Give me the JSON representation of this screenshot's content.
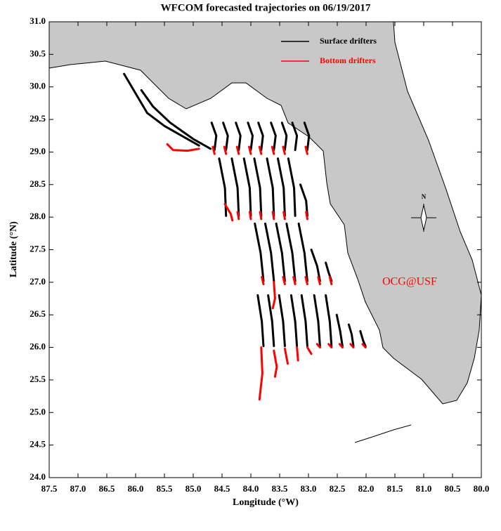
{
  "chart_data": {
    "type": "trajectory-map",
    "title": "WFCOM forecasted trajectories on 06/19/2017",
    "xlabel": "Longitude (°W)",
    "ylabel": "Latitude (°N)",
    "watermark": "OCG@USF",
    "compass_label": "N",
    "legend": "upper right",
    "xlim": [
      87.5,
      80
    ],
    "ylim": [
      24,
      31
    ],
    "xticks": [
      87.5,
      {
        "value": 87,
        "label": "87.0"
      },
      86.5,
      {
        "value": 86,
        "label": "86.0"
      },
      85.5,
      {
        "value": 85,
        "label": "85.0"
      },
      84.5,
      {
        "value": 84,
        "label": "84.0"
      },
      83.5,
      {
        "value": 83,
        "label": "83.0"
      },
      82.5,
      {
        "value": 82,
        "label": "82.0"
      },
      81.5,
      {
        "value": 81,
        "label": "81.0"
      },
      80.5,
      {
        "value": 80,
        "label": "80.0"
      }
    ],
    "yticks": [
      {
        "value": 24,
        "label": "24.0"
      },
      24.5,
      {
        "value": 25,
        "label": "25.0"
      },
      25.5,
      {
        "value": 26,
        "label": "26.0"
      },
      26.5,
      {
        "value": 27,
        "label": "27.0"
      },
      27.5,
      {
        "value": 28,
        "label": "28.0"
      },
      28.5,
      {
        "value": 29,
        "label": "29.0"
      },
      29.5,
      {
        "value": 30,
        "label": "30.0"
      },
      30.5,
      {
        "value": 31,
        "label": "31.0"
      }
    ],
    "series": [
      {
        "name": "Surface drifters",
        "color": "#000000",
        "x": [
          86.2,
          86.0,
          85.8,
          85.5,
          85.2,
          84.9,
          null,
          85.9,
          85.7,
          85.4,
          85.0,
          84.7,
          null,
          84.68,
          84.6,
          84.63,
          null,
          84.48,
          84.4,
          84.43,
          null,
          84.26,
          84.18,
          84.21,
          null,
          84.05,
          83.97,
          84.0,
          null,
          83.87,
          83.79,
          83.82,
          null,
          83.65,
          83.57,
          83.6,
          null,
          83.46,
          83.38,
          83.41,
          null,
          83.28,
          83.2,
          83.23,
          null,
          83.07,
          82.99,
          83.02,
          null,
          84.55,
          84.45,
          84.43,
          null,
          84.33,
          84.23,
          84.21,
          null,
          84.12,
          84.02,
          84.0,
          null,
          83.94,
          83.84,
          83.82,
          null,
          83.72,
          83.62,
          83.6,
          null,
          83.53,
          83.43,
          83.41,
          null,
          83.35,
          83.25,
          83.23,
          null,
          83.14,
          83.04,
          83.02,
          null,
          83.93,
          83.83,
          83.78,
          null,
          83.75,
          83.65,
          83.6,
          null,
          83.56,
          83.46,
          83.41,
          null,
          83.38,
          83.28,
          83.23,
          null,
          83.17,
          83.07,
          83.02,
          null,
          82.95,
          82.85,
          82.8,
          null,
          82.7,
          82.65,
          82.6,
          null,
          83.88,
          83.81,
          83.78,
          null,
          83.7,
          83.63,
          83.6,
          null,
          83.51,
          83.44,
          83.41,
          null,
          83.3,
          83.23,
          83.2,
          null,
          83.12,
          83.05,
          83.02,
          null,
          82.9,
          82.83,
          82.8,
          null,
          82.7,
          82.63,
          82.6,
          null,
          82.51,
          82.45,
          82.41,
          null,
          82.3,
          82.25,
          82.22,
          null,
          82.1,
          82.05,
          82.01
        ],
        "y": [
          30.2,
          29.9,
          29.6,
          29.4,
          29.25,
          29.1,
          null,
          29.95,
          29.7,
          29.45,
          29.2,
          29.05,
          null,
          29.45,
          29.25,
          29.03,
          null,
          29.45,
          29.25,
          29.03,
          null,
          29.45,
          29.25,
          29.03,
          null,
          29.45,
          29.25,
          29.03,
          null,
          29.45,
          29.25,
          29.03,
          null,
          29.45,
          29.25,
          29.03,
          null,
          29.45,
          29.25,
          29.03,
          null,
          29.45,
          29.25,
          29.03,
          null,
          29.45,
          29.25,
          29.03,
          null,
          28.9,
          28.45,
          28.02,
          null,
          28.9,
          28.45,
          28.02,
          null,
          28.9,
          28.45,
          28.02,
          null,
          28.9,
          28.45,
          28.02,
          null,
          28.9,
          28.45,
          28.02,
          null,
          28.9,
          28.45,
          28.02,
          null,
          28.9,
          28.45,
          28.02,
          null,
          28.5,
          28.25,
          28.02,
          null,
          27.9,
          27.45,
          27.02,
          null,
          27.9,
          27.45,
          27.02,
          null,
          27.9,
          27.45,
          27.02,
          null,
          27.9,
          27.45,
          27.02,
          null,
          27.9,
          27.45,
          27.02,
          null,
          27.5,
          27.25,
          27.02,
          null,
          27.3,
          27.15,
          27.02,
          null,
          26.8,
          26.4,
          26.02,
          null,
          26.8,
          26.4,
          26.02,
          null,
          26.8,
          26.4,
          26.02,
          null,
          26.8,
          26.4,
          26.02,
          null,
          26.8,
          26.4,
          26.02,
          null,
          26.8,
          26.4,
          26.02,
          null,
          26.8,
          26.4,
          26.02,
          null,
          26.5,
          26.25,
          26.02,
          null,
          26.35,
          26.2,
          26.02,
          null,
          26.25,
          26.1,
          26.02
        ]
      },
      {
        "name": "Bottom drifters",
        "color": "#ff0000",
        "x": [
          85.45,
          85.35,
          85.1,
          84.9,
          null,
          84.66,
          84.63,
          null,
          84.46,
          84.43,
          null,
          84.24,
          84.21,
          null,
          84.03,
          84.0,
          null,
          83.85,
          83.82,
          null,
          83.63,
          83.6,
          null,
          83.44,
          83.41,
          null,
          83.05,
          83.02,
          null,
          84.45,
          84.35,
          84.32,
          null,
          84.23,
          84.21,
          null,
          84.02,
          84.0,
          null,
          83.84,
          83.82,
          null,
          83.62,
          83.6,
          null,
          83.43,
          83.41,
          null,
          83.04,
          83.02,
          null,
          83.81,
          83.78,
          null,
          83.6,
          83.58,
          83.62,
          null,
          83.44,
          83.41,
          null,
          83.26,
          83.23,
          null,
          83.05,
          83.02,
          null,
          82.83,
          82.8,
          null,
          82.63,
          82.6,
          null,
          83.82,
          83.8,
          83.85,
          null,
          83.6,
          83.55,
          83.58,
          null,
          83.41,
          83.36,
          null,
          83.2,
          83.18,
          null,
          83.02,
          82.95,
          null,
          82.85,
          82.8,
          null,
          82.65,
          82.6,
          null,
          82.46,
          82.41,
          null,
          82.27,
          82.22,
          null,
          82.06,
          82.01
        ],
        "y": [
          29.12,
          29.03,
          29.02,
          29.05,
          null,
          29.08,
          28.97,
          null,
          29.08,
          28.97,
          null,
          29.08,
          28.97,
          null,
          29.08,
          28.97,
          null,
          29.08,
          28.97,
          null,
          29.08,
          28.97,
          null,
          29.08,
          28.97,
          null,
          29.08,
          28.97,
          null,
          28.2,
          28.05,
          27.95,
          null,
          28.08,
          27.97,
          null,
          28.08,
          27.97,
          null,
          28.08,
          27.97,
          null,
          28.08,
          27.97,
          null,
          28.08,
          27.97,
          null,
          28.08,
          27.97,
          null,
          27.08,
          26.97,
          null,
          27.0,
          26.75,
          26.6,
          null,
          27.08,
          26.97,
          null,
          27.08,
          26.97,
          null,
          27.08,
          26.97,
          null,
          27.08,
          26.97,
          null,
          27.08,
          26.97,
          null,
          26.0,
          25.6,
          25.2,
          null,
          25.95,
          25.7,
          25.55,
          null,
          25.98,
          25.75,
          null,
          26.0,
          25.8,
          null,
          26.0,
          25.9,
          null,
          26.05,
          26.0,
          null,
          26.05,
          26.0,
          null,
          26.05,
          26.0,
          null,
          26.05,
          26.0,
          null,
          26.05,
          26.0
        ]
      }
    ]
  }
}
